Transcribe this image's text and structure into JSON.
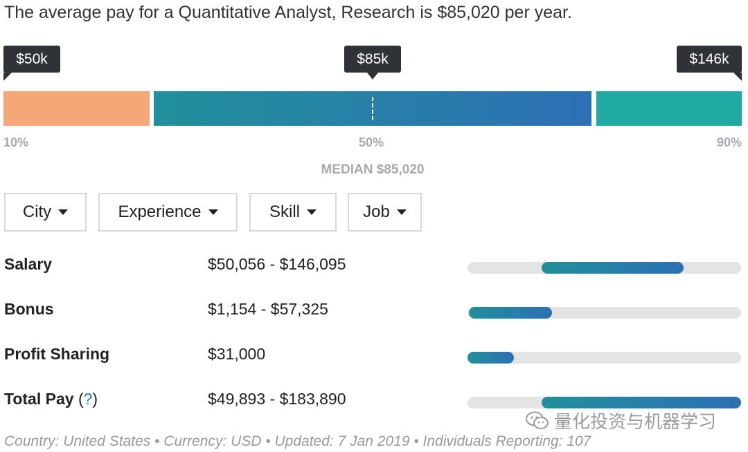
{
  "headline": "The average pay for a Quantitative Analyst, Research is $85,020 per year.",
  "callouts": {
    "low": "$50k",
    "median": "$85k",
    "high": "$146k"
  },
  "percentiles": {
    "p10": "10%",
    "p50": "50%",
    "p90": "90%"
  },
  "median_label": "MEDIAN $85,020",
  "colors": {
    "low_segment": "#f4a877",
    "mid_gradient_start": "#21909b",
    "mid_gradient_end": "#2d6fb5",
    "high_segment": "#1faba3"
  },
  "filters": [
    {
      "label": "City"
    },
    {
      "label": "Experience"
    },
    {
      "label": "Skill"
    },
    {
      "label": "Job"
    }
  ],
  "rows": [
    {
      "label": "Salary",
      "value": "$50,056 - $146,095",
      "fill_start_pct": 27,
      "fill_end_pct": 79
    },
    {
      "label": "Bonus",
      "value": "$1,154 - $57,325",
      "fill_start_pct": 0.5,
      "fill_end_pct": 31
    },
    {
      "label": "Profit Sharing",
      "value": "$31,000",
      "fill_start_pct": 0,
      "fill_end_pct": 17
    },
    {
      "label": "Total Pay",
      "help": "?",
      "value": "$49,893 - $183,890",
      "fill_start_pct": 27,
      "fill_end_pct": 100
    }
  ],
  "footer": "Country: United States  •  Currency: USD  •  Updated: 7 Jan 2019  •  Individuals Reporting: 107",
  "watermark": "量化投资与机器学习"
}
